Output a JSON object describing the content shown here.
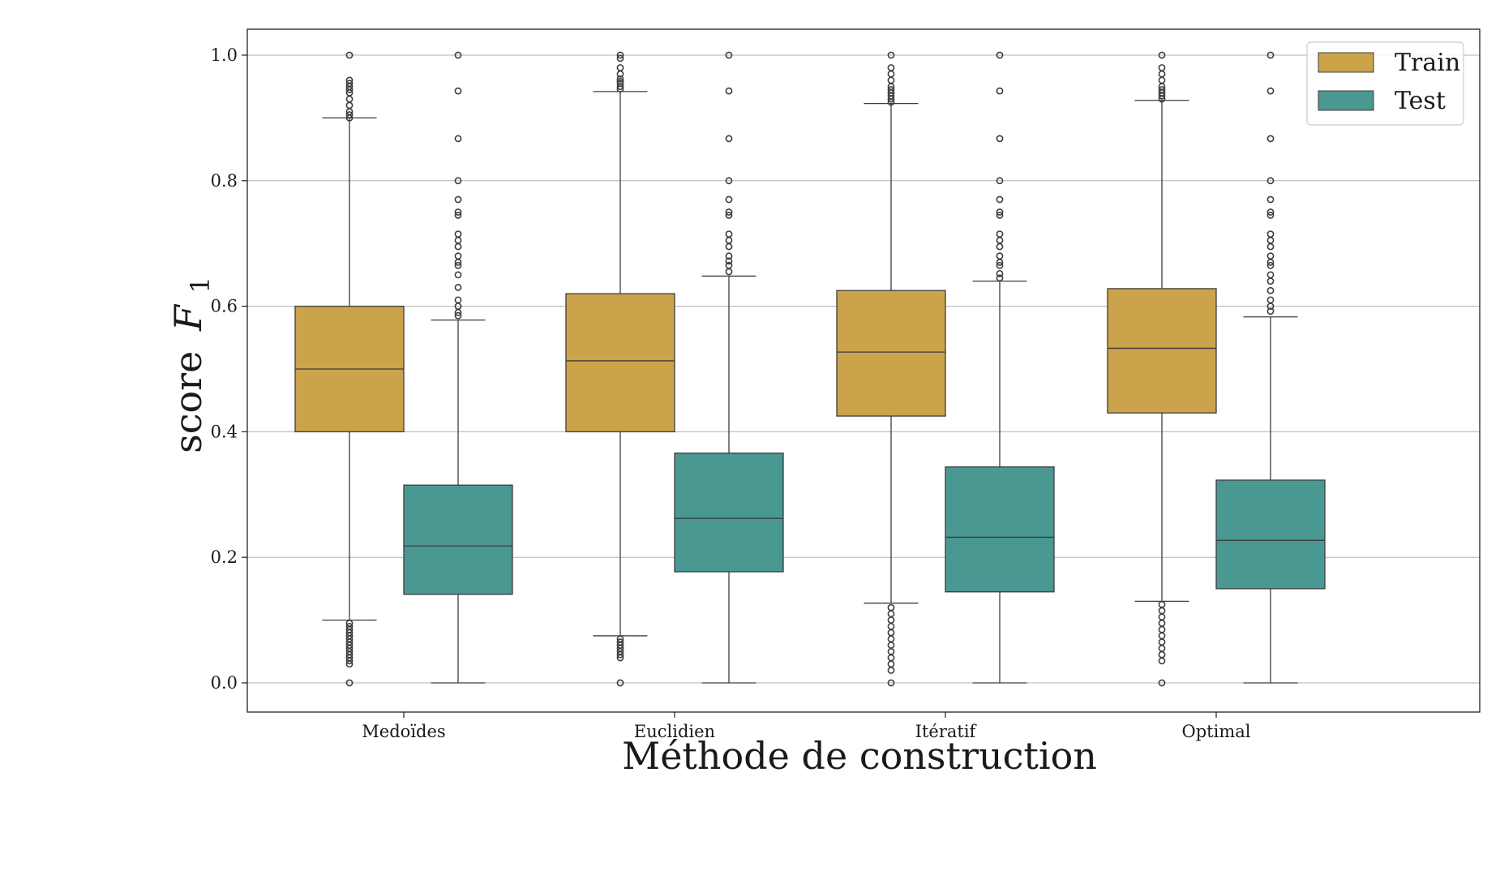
{
  "chart_data": {
    "type": "box",
    "xlabel": "Méthode de construction",
    "ylabel_text": "score",
    "ylabel_symbol": "F",
    "ylabel_subscript": "1",
    "ylim": [
      -0.045,
      1.045
    ],
    "yticks": [
      0.0,
      0.2,
      0.4,
      0.6,
      0.8,
      1.0
    ],
    "ytick_labels": [
      "0.0",
      "0.2",
      "0.4",
      "0.6",
      "0.8",
      "1.0"
    ],
    "grid": "horizontal",
    "legend_position": "top-right",
    "categories": [
      "Medoïdes",
      "Euclidien",
      "Itératif",
      "Optimal"
    ],
    "series": [
      {
        "name": "Train",
        "color": "#CBA34A",
        "boxes": [
          {
            "q1": 0.4,
            "median": 0.5,
            "q3": 0.6,
            "whisker_low": 0.1,
            "whisker_high": 0.9,
            "outliers": [
              1.0,
              0.96,
              0.955,
              0.95,
              0.945,
              0.94,
              0.93,
              0.92,
              0.91,
              0.905,
              0.9,
              0.095,
              0.09,
              0.085,
              0.08,
              0.075,
              0.07,
              0.065,
              0.06,
              0.055,
              0.05,
              0.045,
              0.04,
              0.035,
              0.03,
              0.0
            ]
          },
          {
            "q1": 0.4,
            "median": 0.513,
            "q3": 0.62,
            "whisker_low": 0.075,
            "whisker_high": 0.942,
            "outliers": [
              1.0,
              0.995,
              0.98,
              0.97,
              0.962,
              0.958,
              0.955,
              0.95,
              0.946,
              0.07,
              0.065,
              0.06,
              0.055,
              0.05,
              0.045,
              0.04,
              0.0
            ]
          },
          {
            "q1": 0.425,
            "median": 0.527,
            "q3": 0.625,
            "whisker_low": 0.127,
            "whisker_high": 0.923,
            "outliers": [
              1.0,
              0.98,
              0.97,
              0.96,
              0.95,
              0.945,
              0.94,
              0.935,
              0.93,
              0.925,
              0.12,
              0.11,
              0.1,
              0.09,
              0.08,
              0.07,
              0.06,
              0.05,
              0.04,
              0.03,
              0.02,
              0.0
            ]
          },
          {
            "q1": 0.43,
            "median": 0.533,
            "q3": 0.628,
            "whisker_low": 0.13,
            "whisker_high": 0.928,
            "outliers": [
              1.0,
              0.98,
              0.97,
              0.96,
              0.95,
              0.945,
              0.94,
              0.935,
              0.93,
              0.125,
              0.115,
              0.105,
              0.095,
              0.085,
              0.075,
              0.065,
              0.055,
              0.045,
              0.035,
              0.0
            ]
          }
        ]
      },
      {
        "name": "Test",
        "color": "#4A9892",
        "boxes": [
          {
            "q1": 0.141,
            "median": 0.218,
            "q3": 0.315,
            "whisker_low": 0.0,
            "whisker_high": 0.578,
            "outliers": [
              1.0,
              0.943,
              0.867,
              0.8,
              0.77,
              0.75,
              0.745,
              0.715,
              0.705,
              0.695,
              0.68,
              0.67,
              0.665,
              0.65,
              0.63,
              0.61,
              0.6,
              0.59,
              0.585
            ]
          },
          {
            "q1": 0.177,
            "median": 0.262,
            "q3": 0.366,
            "whisker_low": 0.0,
            "whisker_high": 0.648,
            "outliers": [
              1.0,
              0.943,
              0.867,
              0.8,
              0.77,
              0.75,
              0.745,
              0.715,
              0.705,
              0.695,
              0.68,
              0.672,
              0.665,
              0.655
            ]
          },
          {
            "q1": 0.145,
            "median": 0.232,
            "q3": 0.344,
            "whisker_low": 0.0,
            "whisker_high": 0.64,
            "outliers": [
              1.0,
              0.943,
              0.867,
              0.8,
              0.77,
              0.75,
              0.745,
              0.715,
              0.705,
              0.695,
              0.68,
              0.67,
              0.665,
              0.652,
              0.645
            ]
          },
          {
            "q1": 0.15,
            "median": 0.227,
            "q3": 0.323,
            "whisker_low": 0.0,
            "whisker_high": 0.583,
            "outliers": [
              1.0,
              0.943,
              0.867,
              0.8,
              0.77,
              0.75,
              0.745,
              0.715,
              0.705,
              0.695,
              0.68,
              0.67,
              0.665,
              0.65,
              0.64,
              0.625,
              0.61,
              0.6,
              0.592
            ]
          }
        ]
      }
    ]
  }
}
